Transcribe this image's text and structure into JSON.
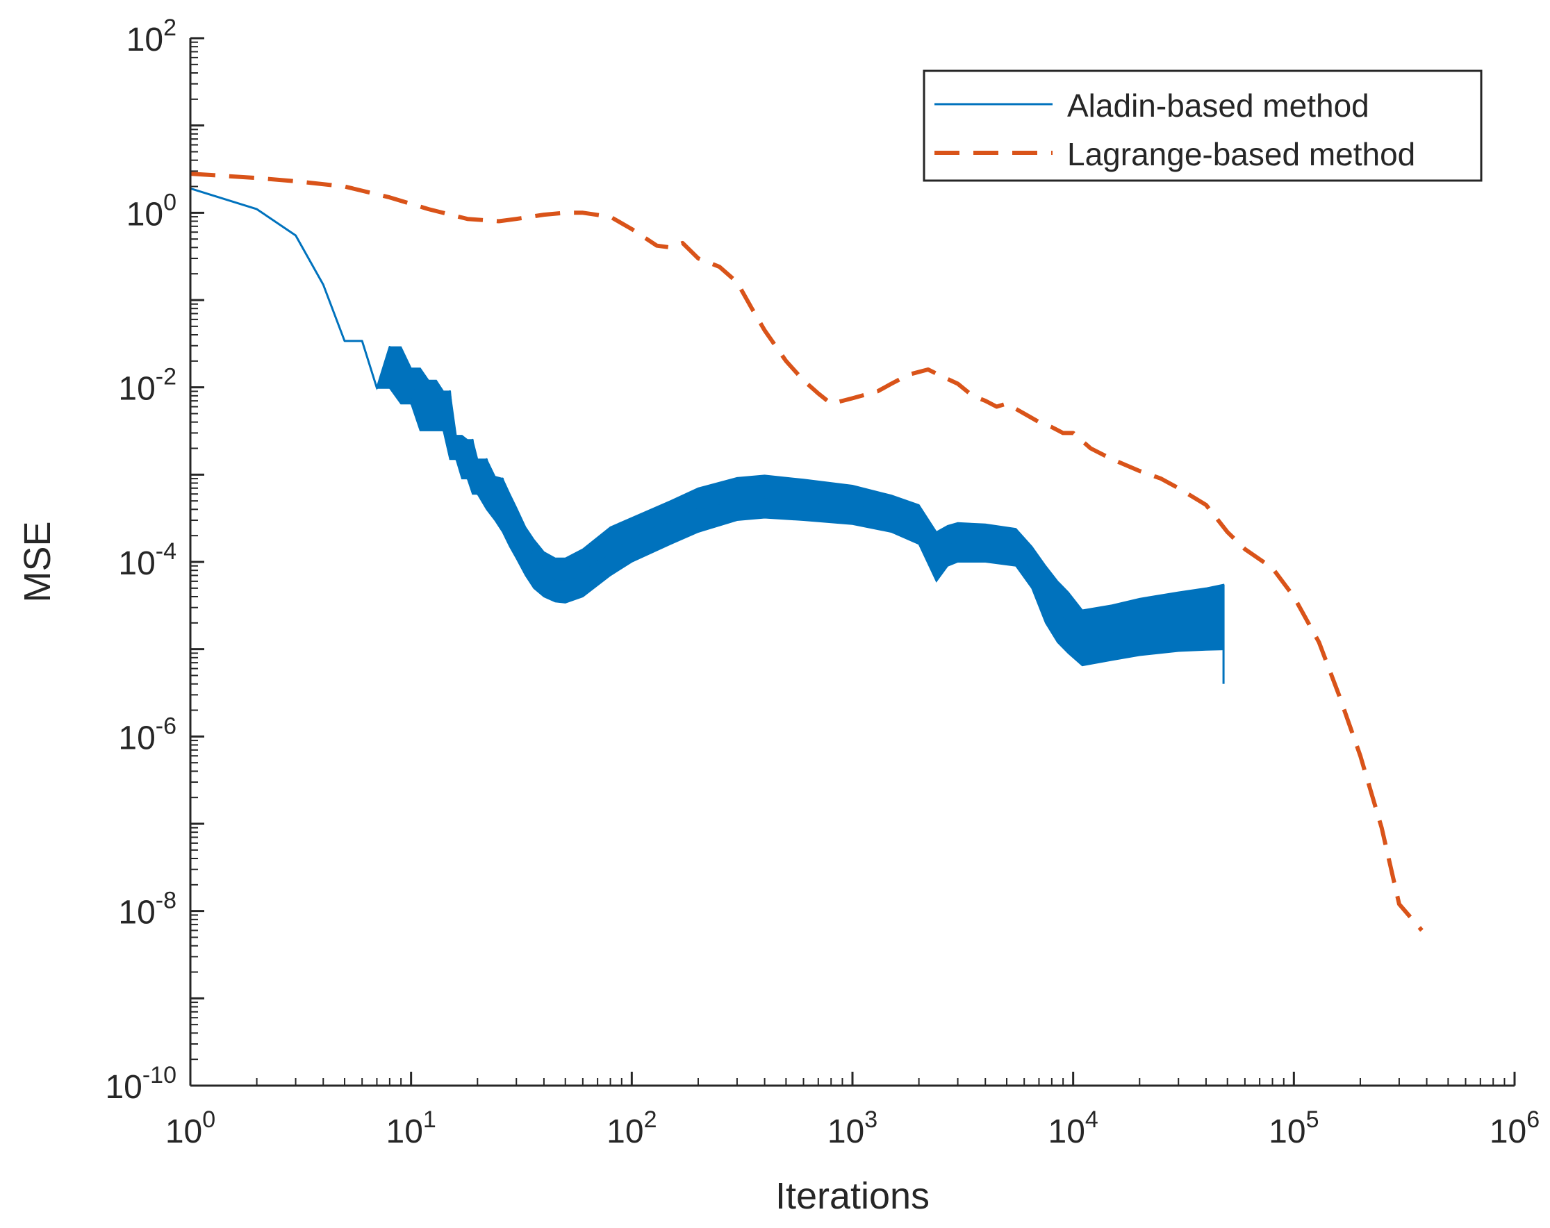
{
  "chart_data": {
    "type": "line",
    "title": "",
    "xlabel": "Iterations",
    "ylabel": "MSE",
    "xscale": "log",
    "yscale": "log",
    "xlim": [
      1,
      1000000
    ],
    "ylim": [
      1e-10,
      100
    ],
    "grid": false,
    "legend_location": "top-right",
    "x_ticks": [
      {
        "base": "10",
        "exp": "0",
        "value": 1
      },
      {
        "base": "10",
        "exp": "1",
        "value": 10
      },
      {
        "base": "10",
        "exp": "2",
        "value": 100
      },
      {
        "base": "10",
        "exp": "3",
        "value": 1000
      },
      {
        "base": "10",
        "exp": "4",
        "value": 10000
      },
      {
        "base": "10",
        "exp": "5",
        "value": 100000
      },
      {
        "base": "10",
        "exp": "6",
        "value": 1000000
      }
    ],
    "y_ticks": [
      {
        "base": "10",
        "exp": "-10",
        "value": 1e-10
      },
      {
        "base": "10",
        "exp": "-8",
        "value": 1e-08
      },
      {
        "base": "10",
        "exp": "-6",
        "value": 1e-06
      },
      {
        "base": "10",
        "exp": "-4",
        "value": 0.0001
      },
      {
        "base": "10",
        "exp": "-2",
        "value": 0.01
      },
      {
        "base": "10",
        "exp": "0",
        "value": 1
      },
      {
        "base": "10",
        "exp": "2",
        "value": 100
      }
    ],
    "series": [
      {
        "name": "Aladin-based method",
        "color": "#0072BD",
        "style": "solid",
        "x": [
          1,
          2,
          3,
          4,
          5,
          6,
          7,
          8,
          9,
          10,
          11,
          12,
          13,
          14,
          15,
          16,
          17,
          18,
          19,
          20,
          22,
          24,
          26,
          28,
          30,
          33,
          36,
          40,
          45,
          50,
          60,
          80,
          100,
          150,
          200,
          300,
          400,
          600,
          1000,
          1500,
          2000,
          2400,
          2700,
          3000,
          4000,
          5500,
          6500,
          7500,
          8500,
          9500,
          11000,
          15000,
          20000,
          30000,
          40000,
          48000
        ],
        "values": [
          1.9,
          1.1,
          0.55,
          0.15,
          0.034,
          0.034,
          0.0098,
          0.029,
          0.019,
          0.0065,
          0.014,
          0.005,
          0.011,
          0.0032,
          0.009,
          0.0015,
          0.0027,
          0.0009,
          0.0025,
          0.0006,
          0.0015,
          0.0005,
          0.0009,
          0.00025,
          0.0004,
          0.00018,
          0.00012,
          8e-05,
          6e-05,
          6e-05,
          7.5e-05,
          0.00013,
          0.00018,
          0.0003,
          0.0004,
          0.00053,
          0.00055,
          0.0005,
          0.00045,
          0.00035,
          0.00028,
          0.00012,
          0.00015,
          0.00017,
          0.00017,
          0.00014,
          7e-05,
          4e-05,
          2.5e-05,
          2e-05,
          1.2e-05,
          1.6e-05,
          1.7e-05,
          1.9e-05,
          2e-05,
          2.1e-05
        ],
        "band_low": [
          1.9,
          1.1,
          0.55,
          0.15,
          0.034,
          0.034,
          0.0098,
          0.0098,
          0.0065,
          0.0065,
          0.0032,
          0.0032,
          0.0032,
          0.0032,
          0.0015,
          0.0015,
          0.0009,
          0.0009,
          0.0006,
          0.0006,
          0.0004,
          0.0003,
          0.00022,
          0.00015,
          0.00011,
          7e-05,
          5e-05,
          4e-05,
          3.5e-05,
          3.4e-05,
          4e-05,
          7e-05,
          0.0001,
          0.00016,
          0.00022,
          0.0003,
          0.00032,
          0.0003,
          0.00027,
          0.00022,
          0.00016,
          6e-05,
          9e-05,
          0.0001,
          0.0001,
          9e-05,
          5e-05,
          2e-05,
          1.2e-05,
          9e-06,
          6.5e-06,
          7.5e-06,
          8.5e-06,
          9.5e-06,
          9.8e-06,
          9.9e-06
        ],
        "band_high": [
          1.9,
          1.1,
          0.55,
          0.15,
          0.034,
          0.034,
          0.0098,
          0.029,
          0.029,
          0.0165,
          0.0165,
          0.012,
          0.012,
          0.009,
          0.009,
          0.0028,
          0.0028,
          0.0025,
          0.0025,
          0.0015,
          0.0015,
          0.00095,
          0.0009,
          0.0006,
          0.00042,
          0.00025,
          0.00018,
          0.00013,
          0.00011,
          0.00011,
          0.00014,
          0.00025,
          0.00032,
          0.0005,
          0.0007,
          0.00092,
          0.00098,
          0.00088,
          0.00075,
          0.00058,
          0.00045,
          0.00022,
          0.00026,
          0.00028,
          0.00027,
          0.00024,
          0.00015,
          9e-05,
          6e-05,
          4.5e-05,
          2.8e-05,
          3.2e-05,
          3.8e-05,
          4.5e-05,
          5e-05,
          5.5e-05
        ],
        "end_x": 48000,
        "end_low": 4e-06,
        "end_high": 5.5e-05
      },
      {
        "name": "Lagrange-based method",
        "color": "#D95319",
        "style": "dashed",
        "x": [
          1,
          2,
          3,
          5,
          8,
          12,
          18,
          25,
          30,
          40,
          50,
          60,
          80,
          100,
          130,
          150,
          170,
          200,
          250,
          300,
          350,
          400,
          500,
          600,
          700,
          800,
          900,
          1000,
          1300,
          1500,
          1800,
          2200,
          2600,
          3000,
          3500,
          4000,
          4500,
          5000,
          6000,
          7000,
          8000,
          9000,
          10000,
          12000,
          15000,
          20000,
          25000,
          30000,
          40000,
          50000,
          60000,
          80000,
          100000,
          130000,
          160000,
          200000,
          250000,
          300000,
          380000
        ],
        "values": [
          2.8,
          2.5,
          2.3,
          2.0,
          1.5,
          1.1,
          0.85,
          0.8,
          0.85,
          0.95,
          1.0,
          1.0,
          0.9,
          0.65,
          0.42,
          0.4,
          0.45,
          0.3,
          0.24,
          0.16,
          0.08,
          0.045,
          0.02,
          0.012,
          0.0085,
          0.0065,
          0.007,
          0.0075,
          0.009,
          0.011,
          0.014,
          0.016,
          0.013,
          0.011,
          0.008,
          0.007,
          0.006,
          0.0065,
          0.005,
          0.004,
          0.0035,
          0.003,
          0.003,
          0.002,
          0.0015,
          0.0011,
          0.0009,
          0.0007,
          0.00045,
          0.00022,
          0.00014,
          8.5e-05,
          4e-05,
          1.2e-05,
          3e-06,
          6e-07,
          9e-08,
          1.2e-08,
          6e-09
        ]
      }
    ]
  }
}
